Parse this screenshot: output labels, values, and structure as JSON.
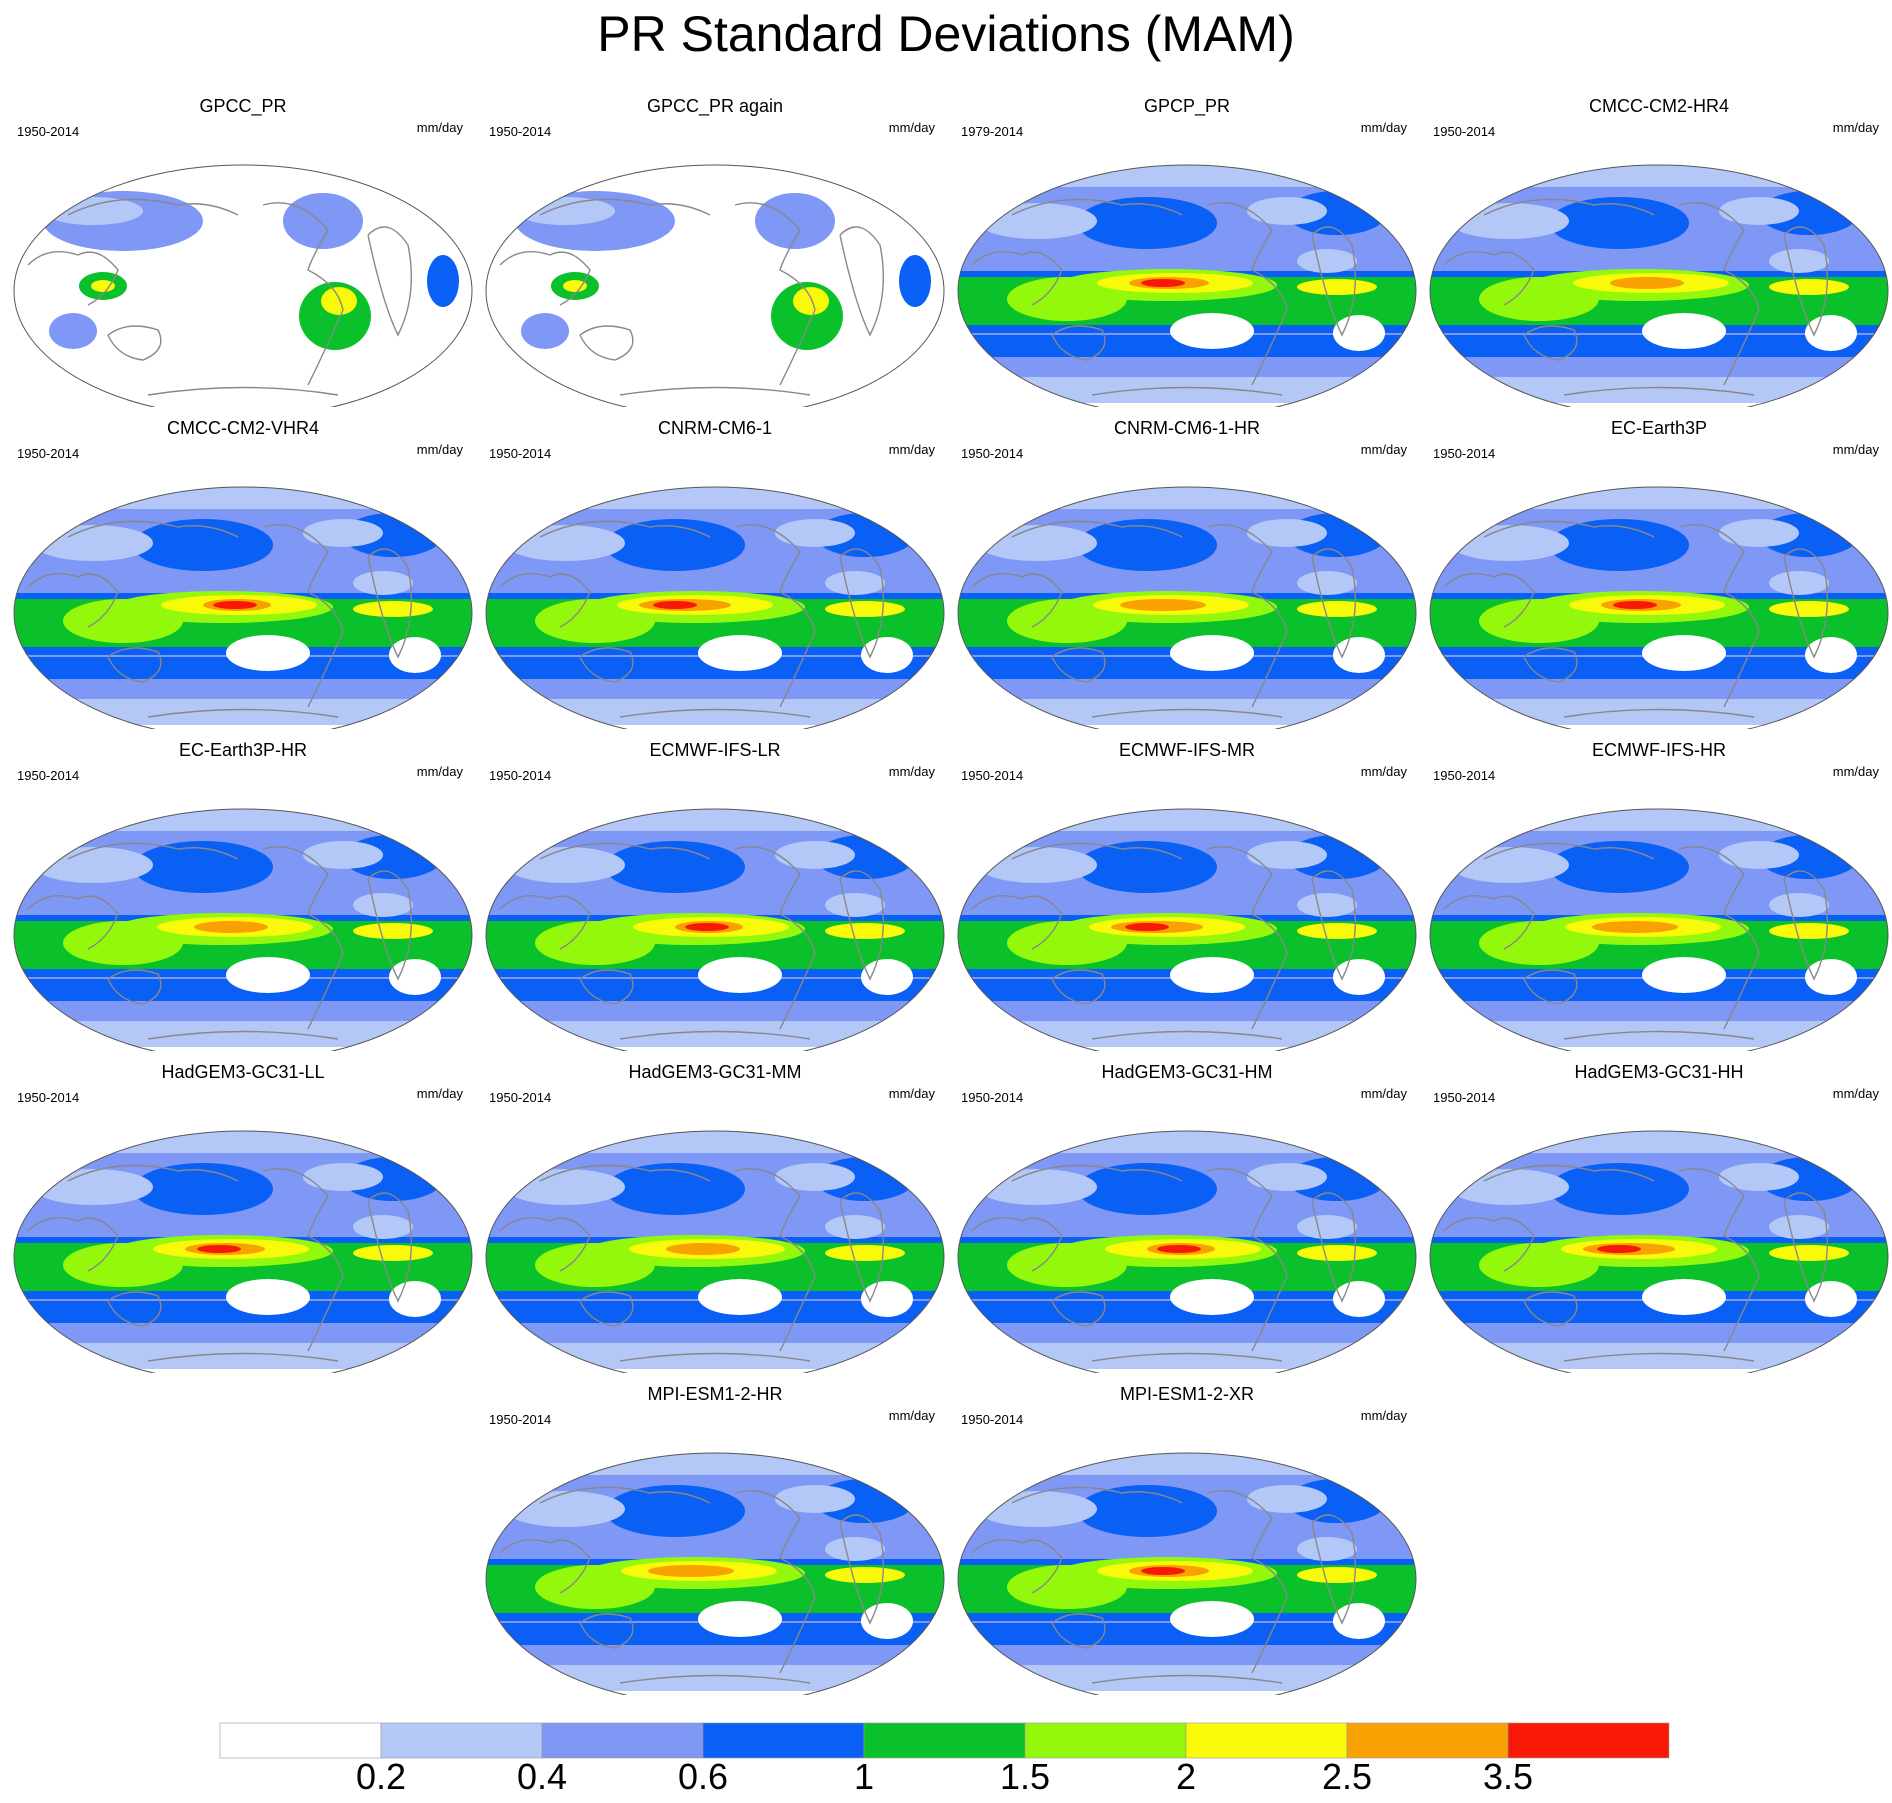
{
  "title": "PR Standard Deviations (MAM)",
  "panels": [
    {
      "name": "GPCC_PR",
      "period": "1950-2014",
      "units": "mm/day",
      "pattern": "obs-land"
    },
    {
      "name": "GPCC_PR again",
      "period": "1950-2014",
      "units": "mm/day",
      "pattern": "obs-land"
    },
    {
      "name": "GPCP_PR",
      "period": "1979-2014",
      "units": "mm/day",
      "pattern": "model"
    },
    {
      "name": "CMCC-CM2-HR4",
      "period": "1950-2014",
      "units": "mm/day",
      "pattern": "model"
    },
    {
      "name": "CMCC-CM2-VHR4",
      "period": "1950-2014",
      "units": "mm/day",
      "pattern": "model"
    },
    {
      "name": "CNRM-CM6-1",
      "period": "1950-2014",
      "units": "mm/day",
      "pattern": "model"
    },
    {
      "name": "CNRM-CM6-1-HR",
      "period": "1950-2014",
      "units": "mm/day",
      "pattern": "model"
    },
    {
      "name": "EC-Earth3P",
      "period": "1950-2014",
      "units": "mm/day",
      "pattern": "model"
    },
    {
      "name": "EC-Earth3P-HR",
      "period": "1950-2014",
      "units": "mm/day",
      "pattern": "model"
    },
    {
      "name": "ECMWF-IFS-LR",
      "period": "1950-2014",
      "units": "mm/day",
      "pattern": "model"
    },
    {
      "name": "ECMWF-IFS-MR",
      "period": "1950-2014",
      "units": "mm/day",
      "pattern": "model"
    },
    {
      "name": "ECMWF-IFS-HR",
      "period": "1950-2014",
      "units": "mm/day",
      "pattern": "model"
    },
    {
      "name": "HadGEM3-GC31-LL",
      "period": "1950-2014",
      "units": "mm/day",
      "pattern": "model"
    },
    {
      "name": "HadGEM3-GC31-MM",
      "period": "1950-2014",
      "units": "mm/day",
      "pattern": "model"
    },
    {
      "name": "HadGEM3-GC31-HM",
      "period": "1950-2014",
      "units": "mm/day",
      "pattern": "model"
    },
    {
      "name": "HadGEM3-GC31-HH",
      "period": "1950-2014",
      "units": "mm/day",
      "pattern": "model"
    },
    {
      "name": "MPI-ESM1-2-HR",
      "period": "1950-2014",
      "units": "mm/day",
      "pattern": "model"
    },
    {
      "name": "MPI-ESM1-2-XR",
      "period": "1950-2014",
      "units": "mm/day",
      "pattern": "model"
    }
  ],
  "colorbar": {
    "colors": [
      "#ffffff",
      "#b4c8f8",
      "#7f97f5",
      "#0a5ff5",
      "#0bc12b",
      "#93f80c",
      "#f8fa0a",
      "#f9a100",
      "#f71906"
    ],
    "labels": [
      "0.2",
      "0.4",
      "0.6",
      "1",
      "1.5",
      "2",
      "2.5",
      "3.5"
    ]
  },
  "colors": {
    "coastline": "#888888",
    "map_border": "#555555"
  }
}
